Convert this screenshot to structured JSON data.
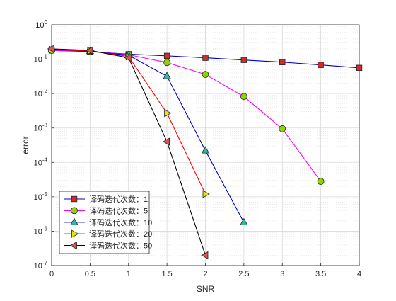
{
  "chart_data": {
    "type": "line",
    "xlabel": "SNR",
    "ylabel": "error",
    "xlim": [
      0,
      4
    ],
    "ylim_log10": [
      -7,
      0
    ],
    "yscale": "log",
    "grid": true,
    "minor_grid": true,
    "legend_position": "bottom-left",
    "x_ticks": [
      "0",
      "0.5",
      "1",
      "1.5",
      "2",
      "2.5",
      "3",
      "3.5",
      "4"
    ],
    "y_ticks": [
      {
        "base": "10",
        "exp": "0"
      },
      {
        "base": "10",
        "exp": "-1"
      },
      {
        "base": "10",
        "exp": "-2"
      },
      {
        "base": "10",
        "exp": "-3"
      },
      {
        "base": "10",
        "exp": "-4"
      },
      {
        "base": "10",
        "exp": "-5"
      },
      {
        "base": "10",
        "exp": "-6"
      },
      {
        "base": "10",
        "exp": "-7"
      }
    ],
    "series": [
      {
        "name": "译码迭代次数：1",
        "line_color": "#0000bf",
        "marker": "square",
        "marker_fill": "#d42a2a",
        "x": [
          0,
          0.5,
          1,
          1.5,
          2,
          2.5,
          3,
          3.5,
          4
        ],
        "y": [
          0.18,
          0.165,
          0.14,
          0.125,
          0.11,
          0.095,
          0.082,
          0.068,
          0.056
        ]
      },
      {
        "name": "译码迭代次数：5",
        "line_color": "#ff00ff",
        "marker": "circle",
        "marker_fill": "#8fd400",
        "x": [
          0,
          0.5,
          1,
          1.5,
          2,
          2.5,
          3,
          3.5
        ],
        "y": [
          0.18,
          0.17,
          0.135,
          0.08,
          0.036,
          0.0082,
          0.00095,
          2.8e-05
        ]
      },
      {
        "name": "译码迭代次数：10",
        "line_color": "#0000bf",
        "marker": "triangle-up",
        "marker_fill": "#3cb4a0",
        "x": [
          0,
          0.5,
          1,
          1.5,
          2,
          2.5
        ],
        "y": [
          0.19,
          0.17,
          0.13,
          0.032,
          0.00022,
          1.8e-06
        ]
      },
      {
        "name": "译码迭代次数：20",
        "line_color": "#ff0000",
        "marker": "triangle-right",
        "marker_fill": "#e6e600",
        "x": [
          0,
          0.5,
          1,
          1.5,
          2
        ],
        "y": [
          0.19,
          0.175,
          0.12,
          0.0027,
          1.2e-05
        ]
      },
      {
        "name": "译码迭代次数：50",
        "line_color": "#000000",
        "marker": "triangle-left",
        "marker_fill": "#e05050",
        "x": [
          0,
          0.5,
          1,
          1.5,
          2
        ],
        "y": [
          0.2,
          0.18,
          0.11,
          0.0004,
          2e-07
        ]
      }
    ]
  }
}
